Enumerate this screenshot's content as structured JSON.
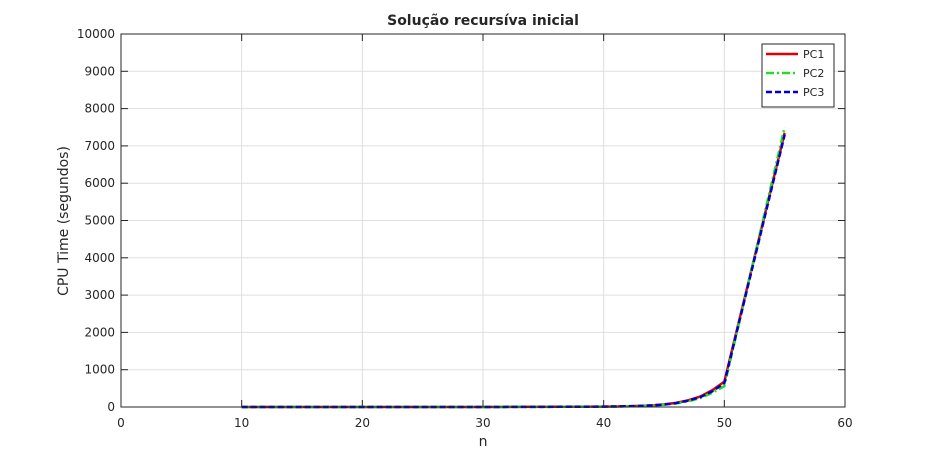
{
  "chart_data": {
    "type": "line",
    "title": "Solução recursíva inicial",
    "xlabel": "n",
    "ylabel": "CPU Time (segundos)",
    "xlim": [
      0,
      60
    ],
    "ylim": [
      0,
      10000
    ],
    "xticks": [
      0,
      10,
      20,
      30,
      40,
      50,
      60
    ],
    "yticks": [
      0,
      1000,
      2000,
      3000,
      4000,
      5000,
      6000,
      7000,
      8000,
      9000,
      10000
    ],
    "grid": true,
    "legend_position": "top-right",
    "series": [
      {
        "name": "PC1",
        "color": "#e00000",
        "dash": "solid",
        "x": [
          10,
          20,
          30,
          40,
          41,
          42,
          43,
          44,
          45,
          46,
          47,
          48,
          49,
          50,
          55
        ],
        "y": [
          0,
          0,
          0,
          10,
          15,
          20,
          30,
          45,
          70,
          110,
          180,
          280,
          450,
          680,
          7350
        ]
      },
      {
        "name": "PC2",
        "color": "#22dd22",
        "dash": "dashdot",
        "x": [
          10,
          20,
          30,
          40,
          41,
          42,
          43,
          44,
          45,
          46,
          47,
          48,
          49,
          50,
          55
        ],
        "y": [
          0,
          0,
          0,
          8,
          12,
          18,
          26,
          40,
          60,
          95,
          150,
          240,
          380,
          560,
          7500
        ]
      },
      {
        "name": "PC3",
        "color": "#0000c8",
        "dash": "dashed",
        "x": [
          10,
          20,
          30,
          40,
          41,
          42,
          43,
          44,
          45,
          46,
          47,
          48,
          49,
          50,
          55
        ],
        "y": [
          0,
          0,
          0,
          9,
          14,
          20,
          28,
          42,
          66,
          105,
          170,
          265,
          420,
          640,
          7300
        ]
      }
    ]
  }
}
